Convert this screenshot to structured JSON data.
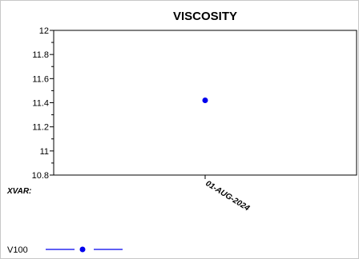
{
  "chart_data": {
    "type": "scatter",
    "title": "VISCOSITY",
    "xlabel": "XVAR:",
    "ylabel": "",
    "x_categories": [
      "01-AUG-2024"
    ],
    "ylim": [
      10.8,
      12
    ],
    "y_ticks": [
      12,
      11.8,
      11.6,
      11.4,
      11.2,
      11,
      10.8
    ],
    "y_tick_labels": [
      "12",
      "11.8",
      "11.6",
      "11.4",
      "11.2",
      "11",
      "10.8"
    ],
    "series": [
      {
        "name": "V100",
        "color": "#0000ee",
        "points": [
          {
            "x": "01-AUG-2024",
            "y": 11.42
          }
        ]
      }
    ],
    "grid": false,
    "legend_position": "bottom-left"
  }
}
